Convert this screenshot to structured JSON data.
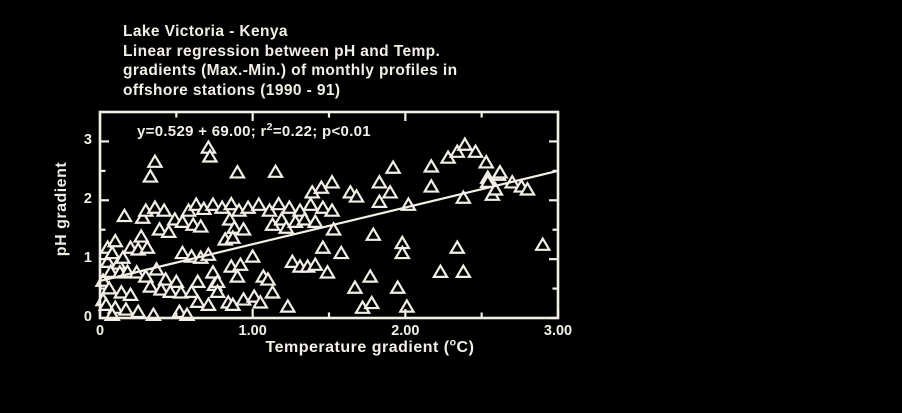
{
  "colors": {
    "background": "#000000",
    "foreground": "#f2efe6"
  },
  "chart_data": {
    "type": "scatter",
    "marker": "open-triangle-up",
    "title_lines": [
      "Lake Victoria - Kenya",
      "Linear regression between pH and Temp.",
      "gradients (Max.-Min.) of monthly profiles in",
      "offshore stations (1990 - 91)"
    ],
    "annotation": {
      "text": "y=0.529 + 69.00; r2=0.22; p<0.01",
      "prefix": "y=0.529 + 69.00; r",
      "sup": "2",
      "suffix": "=0.22; p<0.01"
    },
    "xlabel": {
      "text": "Temperature gradient (oC)",
      "prefix": "Temperature gradient (",
      "sup": "o",
      "suffix": "C)"
    },
    "ylabel": "pH gradient",
    "xlim": [
      0,
      3.0
    ],
    "ylim": [
      0,
      3.5
    ],
    "grid": false,
    "frame": "box-with-inward-ticks",
    "x_axis": {
      "major_tick_values": [
        0,
        1,
        2,
        3
      ],
      "major_tick_labels": [
        "0",
        "1.00",
        "2.00",
        "3.00"
      ],
      "minor_tick_values": [
        0.5,
        1.5,
        2.5
      ]
    },
    "y_axis": {
      "major_tick_values": [
        0,
        1,
        2,
        3
      ],
      "major_tick_labels": [
        "0",
        "1",
        "2",
        "3"
      ],
      "minor_tick_values": [
        0.5,
        1.5,
        2.5
      ]
    },
    "regression_line": {
      "x1": 0,
      "y1": 0.63,
      "x2": 3.0,
      "y2": 2.5
    },
    "points": [
      [
        0.02,
        0.63
      ],
      [
        0.06,
        0.5
      ],
      [
        0.02,
        0.3
      ],
      [
        0.04,
        0.22
      ],
      [
        0.1,
        0.17
      ],
      [
        0.17,
        0.14
      ],
      [
        0.25,
        0.1
      ],
      [
        0.08,
        0.05
      ],
      [
        0.35,
        0.05
      ],
      [
        0.52,
        0.1
      ],
      [
        0.57,
        0.05
      ],
      [
        0.05,
        0.95
      ],
      [
        0.12,
        0.92
      ],
      [
        0.05,
        1.19
      ],
      [
        0.08,
        1.1
      ],
      [
        0.1,
        1.3
      ],
      [
        0.16,
        1.73
      ],
      [
        0.07,
        0.78
      ],
      [
        0.13,
        0.77
      ],
      [
        0.18,
        0.78
      ],
      [
        0.24,
        0.77
      ],
      [
        0.3,
        0.7
      ],
      [
        0.37,
        0.82
      ],
      [
        0.43,
        0.65
      ],
      [
        0.5,
        0.61
      ],
      [
        0.33,
        0.53
      ],
      [
        0.4,
        0.48
      ],
      [
        0.46,
        0.44
      ],
      [
        0.53,
        0.43
      ],
      [
        0.6,
        0.44
      ],
      [
        0.14,
        0.43
      ],
      [
        0.2,
        0.39
      ],
      [
        0.64,
        0.27
      ],
      [
        0.71,
        0.22
      ],
      [
        0.64,
        0.61
      ],
      [
        0.74,
        0.77
      ],
      [
        0.75,
        0.56
      ],
      [
        0.15,
        1.02
      ],
      [
        0.2,
        1.19
      ],
      [
        0.25,
        1.16
      ],
      [
        0.31,
        1.19
      ],
      [
        0.27,
        1.38
      ],
      [
        0.39,
        1.5
      ],
      [
        0.45,
        1.46
      ],
      [
        0.28,
        1.7
      ],
      [
        0.49,
        1.67
      ],
      [
        0.54,
        1.63
      ],
      [
        0.61,
        1.58
      ],
      [
        0.66,
        1.55
      ],
      [
        0.54,
        1.1
      ],
      [
        0.6,
        1.04
      ],
      [
        0.66,
        1.02
      ],
      [
        0.71,
        1.07
      ],
      [
        0.3,
        1.82
      ],
      [
        0.36,
        1.87
      ],
      [
        0.42,
        1.82
      ],
      [
        0.58,
        1.82
      ],
      [
        0.63,
        1.92
      ],
      [
        0.68,
        1.85
      ],
      [
        0.74,
        1.92
      ],
      [
        0.8,
        1.87
      ],
      [
        0.86,
        1.93
      ],
      [
        0.91,
        1.82
      ],
      [
        0.97,
        1.87
      ],
      [
        1.04,
        1.92
      ],
      [
        1.11,
        1.82
      ],
      [
        1.17,
        1.93
      ],
      [
        1.24,
        1.87
      ],
      [
        1.31,
        1.82
      ],
      [
        1.38,
        1.92
      ],
      [
        1.46,
        1.87
      ],
      [
        1.52,
        1.82
      ],
      [
        1.83,
        1.97
      ],
      [
        2.02,
        1.92
      ],
      [
        0.33,
        2.4
      ],
      [
        0.36,
        2.65
      ],
      [
        0.71,
        2.89
      ],
      [
        0.72,
        2.74
      ],
      [
        0.9,
        2.47
      ],
      [
        1.15,
        2.48
      ],
      [
        1.39,
        2.13
      ],
      [
        1.45,
        2.21
      ],
      [
        1.52,
        2.3
      ],
      [
        1.64,
        2.13
      ],
      [
        1.68,
        2.06
      ],
      [
        1.83,
        2.3
      ],
      [
        1.9,
        2.13
      ],
      [
        1.92,
        2.55
      ],
      [
        2.17,
        2.57
      ],
      [
        2.17,
        2.23
      ],
      [
        2.28,
        2.72
      ],
      [
        2.34,
        2.82
      ],
      [
        2.38,
        2.04
      ],
      [
        2.39,
        2.94
      ],
      [
        2.46,
        2.82
      ],
      [
        2.53,
        2.64
      ],
      [
        2.54,
        2.38
      ],
      [
        2.54,
        2.31
      ],
      [
        2.57,
        2.09
      ],
      [
        2.59,
        2.18
      ],
      [
        2.61,
        2.43
      ],
      [
        2.62,
        2.47
      ],
      [
        2.7,
        2.3
      ],
      [
        2.76,
        2.23
      ],
      [
        2.8,
        2.18
      ],
      [
        0.85,
        1.67
      ],
      [
        0.88,
        1.53
      ],
      [
        0.94,
        1.5
      ],
      [
        0.82,
        1.33
      ],
      [
        0.87,
        1.36
      ],
      [
        1.13,
        1.58
      ],
      [
        1.19,
        1.67
      ],
      [
        1.22,
        1.53
      ],
      [
        1.28,
        1.63
      ],
      [
        1.34,
        1.67
      ],
      [
        1.41,
        1.63
      ],
      [
        1.53,
        1.5
      ],
      [
        1.0,
        1.04
      ],
      [
        0.86,
        0.87
      ],
      [
        0.92,
        0.9
      ],
      [
        0.9,
        0.7
      ],
      [
        1.46,
        1.19
      ],
      [
        1.26,
        0.95
      ],
      [
        1.31,
        0.87
      ],
      [
        1.36,
        0.87
      ],
      [
        1.41,
        0.9
      ],
      [
        1.49,
        0.77
      ],
      [
        1.07,
        0.7
      ],
      [
        1.1,
        0.65
      ],
      [
        0.77,
        0.61
      ],
      [
        0.77,
        0.44
      ],
      [
        0.84,
        0.26
      ],
      [
        0.87,
        0.22
      ],
      [
        0.94,
        0.31
      ],
      [
        1.01,
        0.36
      ],
      [
        1.05,
        0.26
      ],
      [
        1.13,
        0.43
      ],
      [
        1.23,
        0.19
      ],
      [
        1.58,
        1.1
      ],
      [
        1.67,
        0.51
      ],
      [
        1.72,
        0.17
      ],
      [
        1.77,
        0.7
      ],
      [
        1.78,
        0.25
      ],
      [
        1.79,
        1.41
      ],
      [
        1.95,
        0.51
      ],
      [
        1.98,
        1.27
      ],
      [
        1.98,
        1.1
      ],
      [
        2.01,
        0.19
      ],
      [
        2.23,
        0.78
      ],
      [
        2.34,
        1.19
      ],
      [
        2.38,
        0.78
      ],
      [
        2.9,
        1.24
      ]
    ]
  }
}
